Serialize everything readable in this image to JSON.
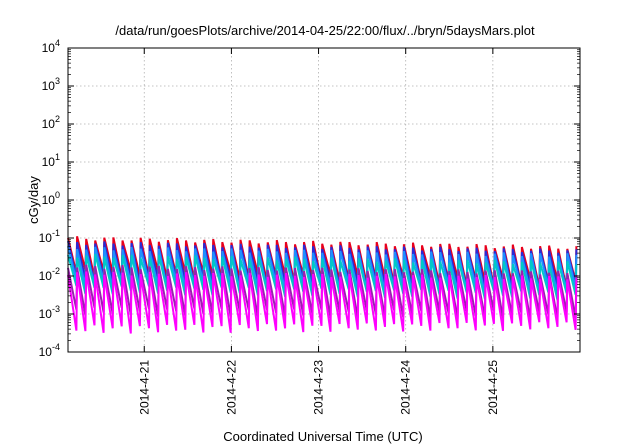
{
  "chart_data": {
    "type": "line",
    "title": "/data/run/goesPlots/archive/2014-04-25/22:00/flux/../bryn/5daysMars.plot",
    "xlabel": "Coordinated Universal Time (UTC)",
    "ylabel": "cGy/day",
    "y_scale": "log",
    "ylim": [
      0.0001,
      10000
    ],
    "xlim": [
      "2014-04-20 03:00",
      "2014-04-26 00:00"
    ],
    "grid": true,
    "x_ticks": [
      "2014-4-21",
      "2014-4-22",
      "2014-4-23",
      "2014-4-24",
      "2014-4-25"
    ],
    "y_ticks": [
      {
        "value": 0.0001,
        "base": "10",
        "exp": "-4"
      },
      {
        "value": 0.001,
        "base": "10",
        "exp": "-3"
      },
      {
        "value": 0.01,
        "base": "10",
        "exp": "-2"
      },
      {
        "value": 0.1,
        "base": "10",
        "exp": "-1"
      },
      {
        "value": 1,
        "base": "10",
        "exp": "0"
      },
      {
        "value": 10,
        "base": "10",
        "exp": "1"
      },
      {
        "value": 100,
        "base": "10",
        "exp": "2"
      },
      {
        "value": 1000,
        "base": "10",
        "exp": "3"
      },
      {
        "value": 10000,
        "base": "10",
        "exp": "4"
      }
    ],
    "sawtooth_period_hours": 2.5,
    "series": [
      {
        "color": "#e8001c",
        "peak_start": 0.1,
        "peak_end": 0.055,
        "trough_start": 0.012,
        "trough_end": 0.006
      },
      {
        "color": "#2a2ad6",
        "peak_start": 0.075,
        "peak_end": 0.045,
        "trough_start": 0.008,
        "trough_end": 0.005
      },
      {
        "color": "#1e90ff",
        "peak_start": 0.055,
        "peak_end": 0.035,
        "trough_start": 0.006,
        "trough_end": 0.004
      },
      {
        "color": "#00c8c8",
        "peak_start": 0.035,
        "peak_end": 0.022,
        "trough_start": 0.0045,
        "trough_end": 0.003
      },
      {
        "color": "#9b1fb0",
        "peak_start": 0.018,
        "peak_end": 0.012,
        "trough_start": 0.0012,
        "trough_end": 0.0009
      },
      {
        "color": "#ff00ff",
        "peak_start": 0.012,
        "peak_end": 0.009,
        "trough_start": 0.0004,
        "trough_end": 0.0005
      }
    ]
  }
}
